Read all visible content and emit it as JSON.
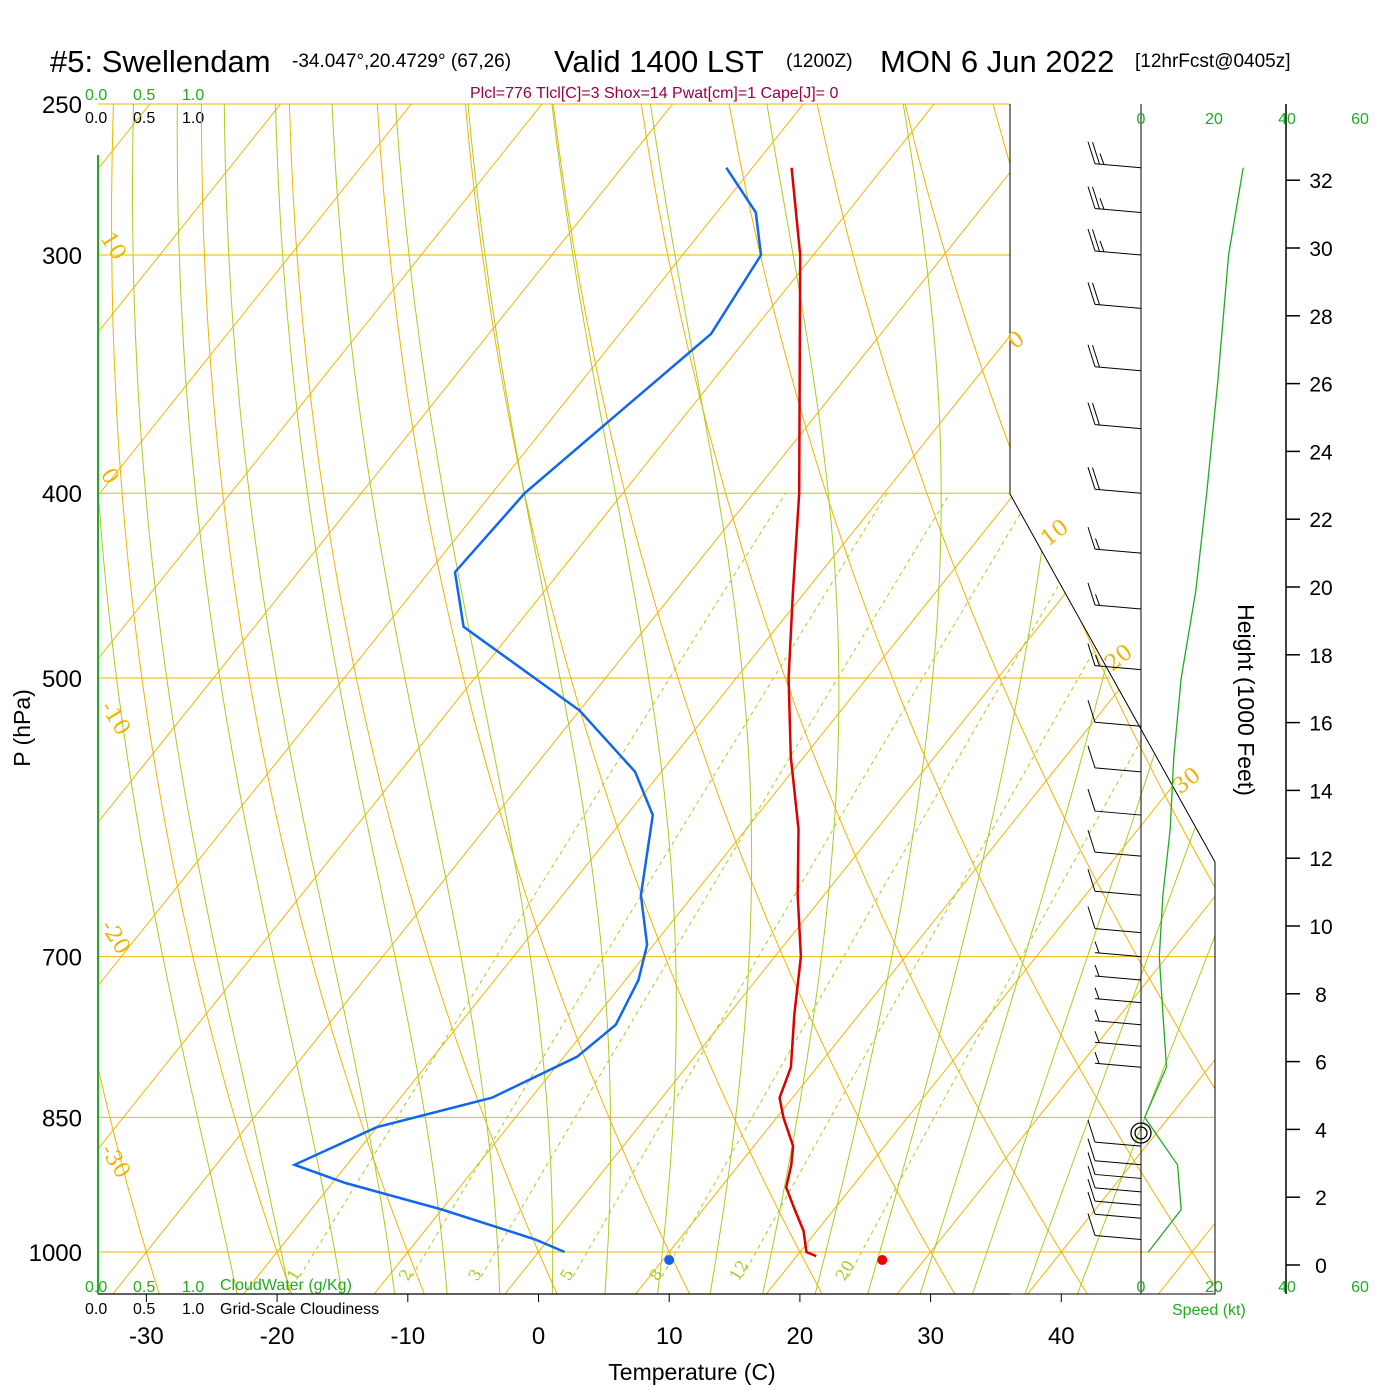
{
  "header": {
    "station": "#5: Swellendam",
    "coords": "-34.047°,20.4729° (67,26)",
    "valid": "Valid 1400 LST",
    "utc": "(1200Z)",
    "date": "MON 6 Jun 2022",
    "forecast": "[12hrFcst@0405z]",
    "indices": "Plcl=776 Tlcl[C]=3 Shox=14 Pwat[cm]=1 Cape[J]= 0"
  },
  "colors": {
    "temperature": "#dd0000",
    "dewpoint": "#1166ee",
    "isotherm": "#f2b300",
    "dry_adiabat": "#f2b300",
    "moist_adiabat": "#a8cc22",
    "mixing_ratio": "#a8cc22",
    "wind_speed": "#22aa22",
    "scale_green": "#22aa22"
  },
  "scales": {
    "cloud_top_green": [
      "0.0",
      "0.5",
      "1.0"
    ],
    "cloud_top_black": [
      "0.0",
      "0.5",
      "1.0"
    ],
    "cloud_bottom_green": [
      "0.0",
      "0.5",
      "1.0"
    ],
    "cloud_bottom_black": [
      "0.0",
      "0.5",
      "1.0"
    ],
    "cloudwater_label": "CloudWater (g/Kg)",
    "cloudiness_label": "Grid-Scale Cloudiness",
    "speed_ticks": [
      "0",
      "20",
      "40",
      "60"
    ],
    "speed_label": "Speed (kt)"
  },
  "chart_data": {
    "type": "skew-t",
    "xlabel": "Temperature (C)",
    "ylabel": "P (hPa)",
    "height_label": "Height (1000 Feet)",
    "x_ticks": [
      -30,
      -20,
      -10,
      0,
      10,
      20,
      30,
      40
    ],
    "p_ticks": [
      250,
      300,
      400,
      500,
      700,
      850,
      1000
    ],
    "height_ticks": [
      0,
      2,
      4,
      6,
      8,
      10,
      12,
      14,
      16,
      18,
      20,
      22,
      24,
      26,
      28,
      30,
      32
    ],
    "isotherm_labels": [
      "10",
      "0",
      "-10",
      "-20",
      "-30"
    ],
    "isotherm_labels_right": [
      "0",
      "10",
      "20",
      "30"
    ],
    "mixing_ratio_labels": [
      "1",
      "2",
      "3",
      "5",
      "8",
      "12",
      "20"
    ],
    "xlim": [
      -34,
      36
    ],
    "temperature": {
      "name": "Temperature",
      "p": [
        270,
        300,
        400,
        450,
        500,
        550,
        600,
        650,
        700,
        750,
        800,
        830,
        850,
        880,
        900,
        925,
        950,
        975,
        1000,
        1005
      ],
      "t": [
        -47,
        -41,
        -26.5,
        -21,
        -16,
        -11,
        -6,
        -2,
        2,
        5,
        8,
        9,
        10.5,
        13,
        14,
        15,
        17,
        19,
        20.5,
        21.5
      ]
    },
    "dewpoint": {
      "name": "Dewpoint",
      "p": [
        270,
        285,
        300,
        330,
        400,
        440,
        470,
        520,
        560,
        590,
        650,
        690,
        720,
        760,
        790,
        830,
        860,
        900,
        920,
        950,
        985,
        1000
      ],
      "td": [
        -52,
        -47,
        -44,
        -43,
        -47.5,
        -48,
        -44,
        -30,
        -22,
        -18,
        -14,
        -10.5,
        -9,
        -8,
        -9,
        -13,
        -20,
        -24,
        -19,
        -10,
        -1,
        2
      ]
    },
    "surface_temperature_marker": 26.3,
    "surface_dewpoint_marker": 10,
    "wind_speed_profile": {
      "p": [
        270,
        300,
        350,
        400,
        450,
        500,
        550,
        600,
        650,
        700,
        750,
        800,
        850,
        900,
        950,
        1000
      ],
      "kt": [
        28,
        24,
        21,
        18,
        15,
        11,
        9,
        8,
        6,
        5,
        6,
        7,
        1,
        10,
        11,
        2
      ]
    },
    "barbs": [
      {
        "p": 270,
        "full": 2,
        "half": 1
      },
      {
        "p": 285,
        "full": 2,
        "half": 1
      },
      {
        "p": 300,
        "full": 2,
        "half": 1
      },
      {
        "p": 320,
        "full": 2,
        "half": 0
      },
      {
        "p": 345,
        "full": 2,
        "half": 0
      },
      {
        "p": 370,
        "full": 2,
        "half": 0
      },
      {
        "p": 400,
        "full": 2,
        "half": 0
      },
      {
        "p": 430,
        "full": 1,
        "half": 1
      },
      {
        "p": 460,
        "full": 1,
        "half": 1
      },
      {
        "p": 495,
        "full": 1,
        "half": 1
      },
      {
        "p": 530,
        "full": 1,
        "half": 0
      },
      {
        "p": 560,
        "full": 1,
        "half": 0
      },
      {
        "p": 590,
        "full": 1,
        "half": 0
      },
      {
        "p": 620,
        "full": 1,
        "half": 0
      },
      {
        "p": 650,
        "full": 1,
        "half": 0
      },
      {
        "p": 680,
        "full": 1,
        "half": 0
      },
      {
        "p": 700,
        "full": 0,
        "half": 1
      },
      {
        "p": 720,
        "full": 0,
        "half": 1
      },
      {
        "p": 740,
        "full": 0,
        "half": 1
      },
      {
        "p": 760,
        "full": 0,
        "half": 1
      },
      {
        "p": 780,
        "full": 0,
        "half": 1
      },
      {
        "p": 800,
        "full": 0,
        "half": 1
      },
      {
        "p": 880,
        "full": 1,
        "half": 0
      },
      {
        "p": 900,
        "full": 1,
        "half": 0
      },
      {
        "p": 915,
        "full": 1,
        "half": 0
      },
      {
        "p": 930,
        "full": 1,
        "half": 0
      },
      {
        "p": 945,
        "full": 1,
        "half": 0
      },
      {
        "p": 960,
        "full": 1,
        "half": 0
      },
      {
        "p": 985,
        "full": 1,
        "half": 0
      }
    ]
  }
}
